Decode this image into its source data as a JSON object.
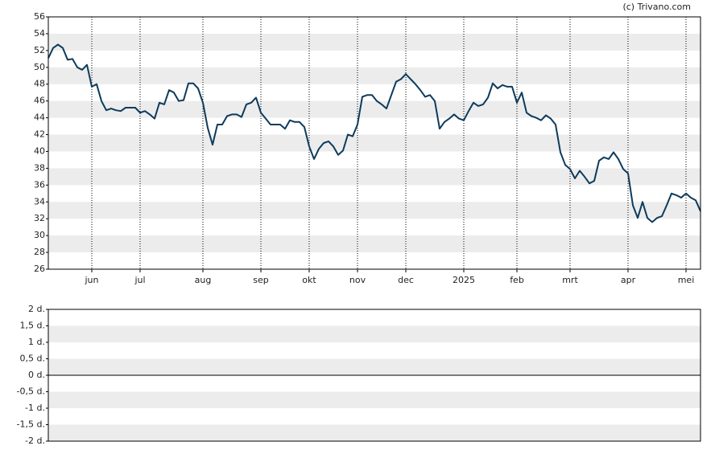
{
  "chart_data": [
    {
      "type": "line",
      "source": "(c) Trivano.com",
      "color": "#0d3b5c",
      "grid": true,
      "categories": [
        null,
        null,
        null,
        null,
        null,
        null,
        null,
        null,
        null,
        "jun",
        null,
        null,
        null,
        null,
        null,
        null,
        null,
        null,
        null,
        "jul",
        null,
        null,
        null,
        null,
        null,
        null,
        null,
        null,
        null,
        null,
        null,
        null,
        "aug",
        null,
        null,
        null,
        null,
        null,
        null,
        null,
        null,
        null,
        null,
        null,
        "sep",
        null,
        null,
        null,
        null,
        null,
        null,
        null,
        null,
        null,
        "okt",
        null,
        null,
        null,
        null,
        null,
        null,
        null,
        null,
        null,
        "nov",
        null,
        null,
        null,
        null,
        null,
        null,
        null,
        null,
        null,
        "dec",
        null,
        null,
        null,
        null,
        null,
        null,
        null,
        null,
        null,
        null,
        null,
        "2025",
        null,
        null,
        null,
        null,
        null,
        null,
        null,
        null,
        null,
        null,
        "feb",
        null,
        null,
        null,
        null,
        null,
        null,
        null,
        null,
        null,
        null,
        "mrt",
        null,
        null,
        null,
        null,
        null,
        null,
        null,
        null,
        null,
        null,
        null,
        "apr",
        null,
        null,
        null,
        null,
        null,
        null,
        null,
        null,
        null,
        null,
        null,
        "mei",
        null,
        null,
        null
      ],
      "values": [
        51.1,
        52.3,
        52.7,
        52.3,
        50.9,
        51.0,
        50.0,
        49.7,
        50.3,
        47.7,
        48.0,
        46.0,
        44.9,
        45.1,
        44.9,
        44.8,
        45.2,
        45.2,
        45.2,
        44.6,
        44.8,
        44.4,
        43.9,
        45.8,
        45.6,
        47.3,
        47.0,
        46.0,
        46.1,
        48.1,
        48.1,
        47.5,
        45.8,
        42.8,
        40.8,
        43.2,
        43.2,
        44.2,
        44.4,
        44.4,
        44.1,
        45.6,
        45.8,
        46.4,
        44.6,
        43.9,
        43.2,
        43.2,
        43.2,
        42.7,
        43.7,
        43.5,
        43.5,
        42.9,
        40.6,
        39.1,
        40.3,
        41.0,
        41.2,
        40.6,
        39.6,
        40.1,
        42.0,
        41.8,
        43.2,
        46.5,
        46.7,
        46.7,
        46.0,
        45.6,
        45.1,
        46.7,
        48.3,
        48.6,
        49.2,
        48.6,
        48.0,
        47.3,
        46.5,
        46.7,
        46.0,
        42.7,
        43.5,
        43.9,
        44.4,
        43.9,
        43.7,
        44.8,
        45.8,
        45.4,
        45.6,
        46.4,
        48.1,
        47.5,
        47.9,
        47.7,
        47.7,
        45.8,
        47.0,
        44.6,
        44.2,
        44.0,
        43.7,
        44.3,
        43.9,
        43.2,
        39.9,
        38.4,
        37.9,
        36.8,
        37.7,
        37.0,
        36.2,
        36.5,
        38.9,
        39.3,
        39.1,
        39.9,
        39.1,
        37.9,
        37.4,
        33.6,
        32.1,
        34.0,
        32.1,
        31.6,
        32.1,
        32.3,
        33.6,
        35.0,
        34.8,
        34.5,
        35.0,
        34.5,
        34.2,
        32.9
      ],
      "ylim": [
        26,
        56
      ],
      "yticks": [
        26,
        28,
        30,
        32,
        34,
        36,
        38,
        40,
        42,
        44,
        46,
        48,
        50,
        52,
        54,
        56
      ]
    },
    {
      "type": "line",
      "grid": true,
      "ylim": [
        -2,
        2
      ],
      "yticks": [
        {
          "value": -2,
          "label": "-2 d."
        },
        {
          "value": -1.5,
          "label": "-1,5 d."
        },
        {
          "value": -1,
          "label": "-1 d."
        },
        {
          "value": -0.5,
          "label": "-0,5 d."
        },
        {
          "value": 0,
          "label": "0 d."
        },
        {
          "value": 0.5,
          "label": "0,5 d."
        },
        {
          "value": 1,
          "label": "1 d."
        },
        {
          "value": 1.5,
          "label": "1,5 d."
        },
        {
          "value": 2,
          "label": "2 d."
        }
      ]
    }
  ]
}
